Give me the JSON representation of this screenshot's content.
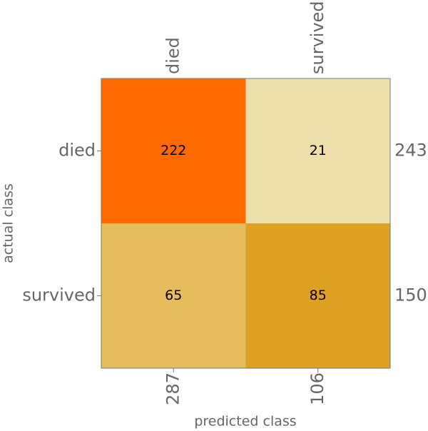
{
  "chart_data": {
    "type": "heatmap",
    "x_categories": [
      "died",
      "survived"
    ],
    "y_categories": [
      "died",
      "survived"
    ],
    "values": [
      [
        222,
        21
      ],
      [
        65,
        85
      ]
    ],
    "colors": [
      [
        "#ff6a00",
        "#eedfaa"
      ],
      [
        "#e6bc5c",
        "#dfa124"
      ]
    ],
    "row_totals": [
      243,
      150
    ],
    "column_totals": [
      287,
      106
    ],
    "xlabel": "predicted class",
    "ylabel": "actual class"
  }
}
